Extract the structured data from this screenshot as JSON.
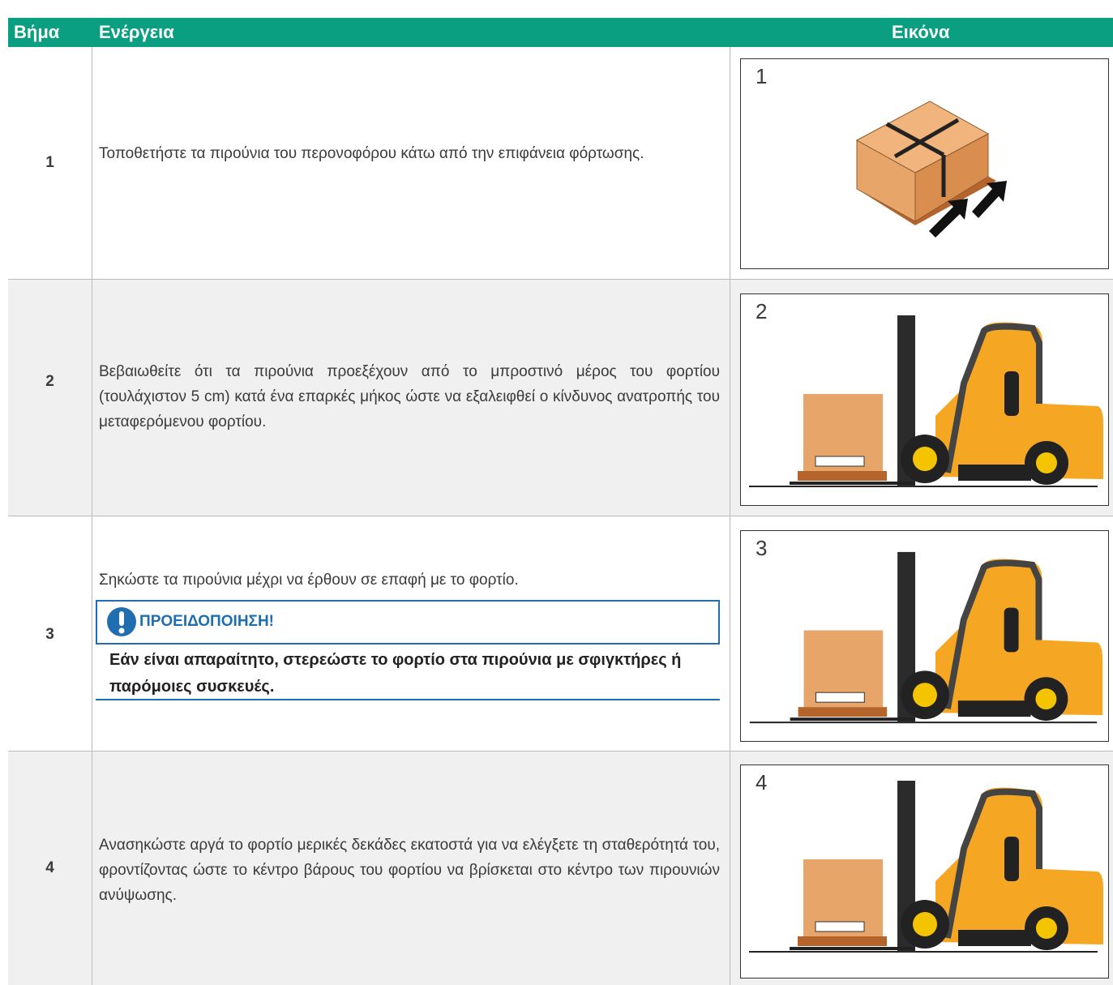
{
  "table": {
    "header": [
      "Βήμα",
      "Ενέργεια",
      "Εικόνα"
    ],
    "rows": [
      {
        "step": "1",
        "action": "Τοποθετήστε τα πιρούνια του περονοφόρου κάτω από την επιφάνεια φόρτωσης.",
        "image_label": "1"
      },
      {
        "step": "2",
        "action": "Βεβαιωθείτε ότι τα πιρούνια προεξέχουν από το μπροστινό μέρος του φορτίου (τουλάχιστον 5 cm) κατά ένα επαρκές μήκος ώστε να εξαλειφθεί ο κίνδυνος ανατροπής του μεταφερόμενου φορτίου.",
        "image_label": "2"
      },
      {
        "step": "3",
        "action": "Σηκώστε τα πιρούνια μέχρι να έρθουν σε επαφή με το φορτίο.",
        "warning": {
          "title": "ΠΡΟΕΙΔΟΠΟΙΗΣΗ!",
          "text": "Εάν είναι απαραίτητο, στερεώστε το φορτίο στα πιρούνια με σφιγκτήρες ή παρόμοιες συσκευές."
        },
        "image_label": "3"
      },
      {
        "step": "4",
        "action": "Ανασηκώστε αργά το φορτίο μερικές δεκάδες εκατοστά για να ελέγξετε τη σταθερότητά του, φροντίζοντας ώστε το κέντρο βάρους του φορτίου να βρίσκεται στο κέντρο των πιρουνιών ανύψωσης.",
        "image_label": "4"
      }
    ]
  }
}
